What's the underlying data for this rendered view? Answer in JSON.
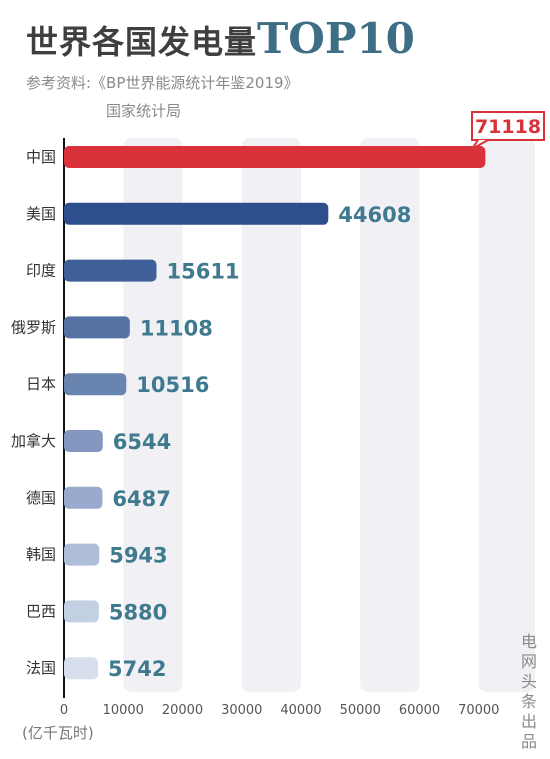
{
  "header": {
    "title_zh": "世界各国发电量",
    "title_en": "TOP10",
    "source_line1": "参考资料:《BP世界能源统计年鉴2019》",
    "source_line2": "国家统计局"
  },
  "credit": "电网头条出品",
  "unit_label": "(亿千瓦时)",
  "chart_data": {
    "type": "bar",
    "orientation": "horizontal",
    "title": "世界各国发电量TOP10",
    "xlabel": "(亿千瓦时)",
    "ylabel": "",
    "xlim": [
      0,
      75000
    ],
    "xticks": [
      0,
      10000,
      20000,
      30000,
      40000,
      50000,
      60000,
      70000
    ],
    "grid": "alternating vertical bands",
    "categories": [
      "中国",
      "美国",
      "印度",
      "俄罗斯",
      "日本",
      "加拿大",
      "德国",
      "韩国",
      "巴西",
      "法国"
    ],
    "values": [
      71118,
      44608,
      15611,
      11108,
      10516,
      6544,
      6487,
      5943,
      5880,
      5742
    ],
    "colors": [
      "#d9323a",
      "#2e4f8e",
      "#3f5f99",
      "#5572a4",
      "#6a84b0",
      "#8397c0",
      "#98aacd",
      "#aebed9",
      "#c3d0e4",
      "#d7dfec"
    ],
    "highlight_color": "#d9323a",
    "value_label_color": "#3f7a8f"
  }
}
